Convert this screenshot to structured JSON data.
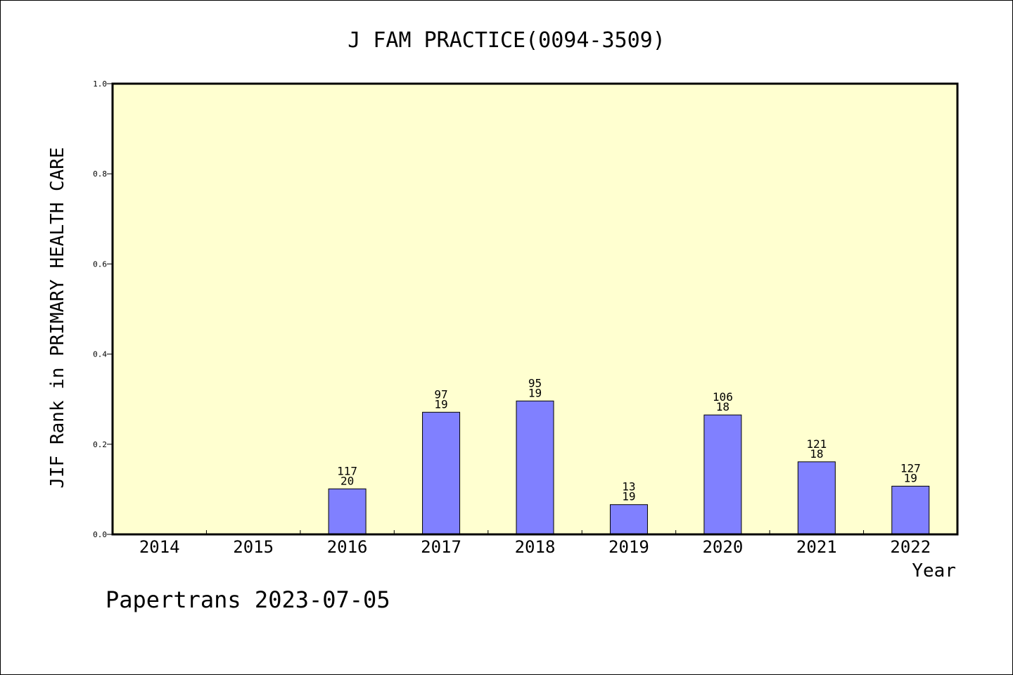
{
  "chart_data": {
    "type": "bar",
    "title": "J FAM PRACTICE(0094-3509)",
    "xlabel": "Year",
    "ylabel": "JIF Rank in PRIMARY HEALTH CARE",
    "ylim": [
      0,
      1.0
    ],
    "yticks": [
      "0.0",
      "0.2",
      "0.4",
      "0.6",
      "0.8",
      "1.0"
    ],
    "ytick_values": [
      0.0,
      0.2,
      0.4,
      0.6,
      0.8,
      1.0
    ],
    "categories": [
      "2014",
      "2015",
      "2016",
      "2017",
      "2018",
      "2019",
      "2020",
      "2021",
      "2022"
    ],
    "values": [
      null,
      null,
      0.101,
      0.271,
      0.296,
      0.066,
      0.265,
      0.161,
      0.107
    ],
    "labels_top": [
      null,
      null,
      "117",
      "97",
      "95",
      "13",
      "106",
      "121",
      "127"
    ],
    "labels_bottom": [
      null,
      null,
      "20",
      "19",
      "19",
      "19",
      "18",
      "18",
      "19"
    ],
    "grid": false,
    "legend": "none",
    "bar_color": "#8080ff",
    "plot_background": "#ffffd0"
  },
  "footer": "Papertrans 2023-07-05"
}
